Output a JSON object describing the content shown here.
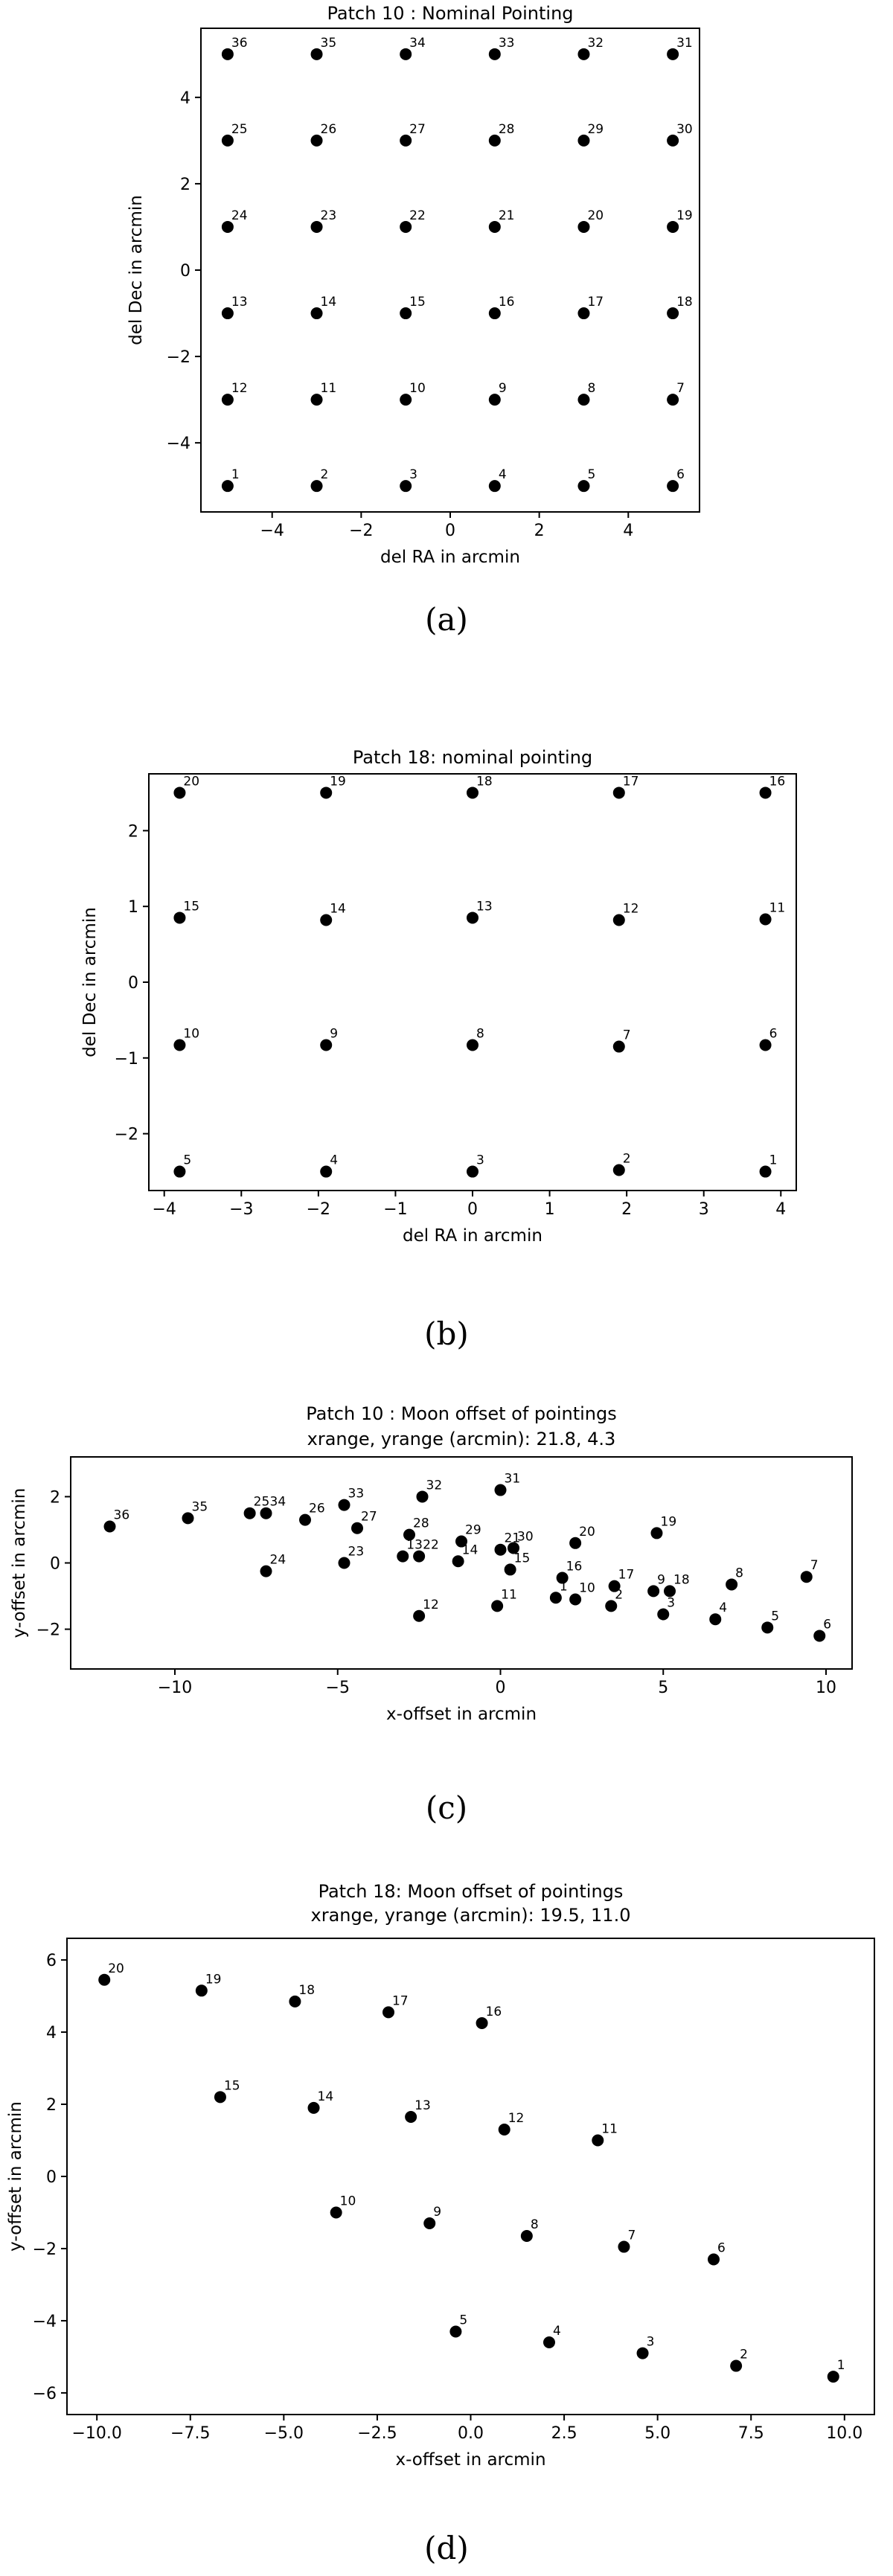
{
  "captions": [
    "(a)",
    "(b)",
    "(c)",
    "(d)"
  ],
  "chart_data": [
    {
      "type": "scatter",
      "title": "Patch 10 : Nominal Pointing",
      "subtitle": "",
      "xlabel": "del RA in arcmin",
      "ylabel": "del Dec in arcmin",
      "xlim": [
        -5.6,
        5.6
      ],
      "ylim": [
        -5.6,
        5.6
      ],
      "xticks": [
        -4,
        -2,
        0,
        2,
        4
      ],
      "yticks": [
        -4,
        -2,
        0,
        2,
        4
      ],
      "tick_labels_x": [
        "−4",
        "−2",
        "0",
        "2",
        "4"
      ],
      "tick_labels_y": [
        "−4",
        "−2",
        "0",
        "2",
        "4"
      ],
      "grid": false,
      "points": [
        {
          "label": "1",
          "x": -5,
          "y": -5
        },
        {
          "label": "2",
          "x": -3,
          "y": -5
        },
        {
          "label": "3",
          "x": -1,
          "y": -5
        },
        {
          "label": "4",
          "x": 1,
          "y": -5
        },
        {
          "label": "5",
          "x": 3,
          "y": -5
        },
        {
          "label": "6",
          "x": 5,
          "y": -5
        },
        {
          "label": "7",
          "x": 5,
          "y": -3
        },
        {
          "label": "8",
          "x": 3,
          "y": -3
        },
        {
          "label": "9",
          "x": 1,
          "y": -3
        },
        {
          "label": "10",
          "x": -1,
          "y": -3
        },
        {
          "label": "11",
          "x": -3,
          "y": -3
        },
        {
          "label": "12",
          "x": -5,
          "y": -3
        },
        {
          "label": "13",
          "x": -5,
          "y": -1
        },
        {
          "label": "14",
          "x": -3,
          "y": -1
        },
        {
          "label": "15",
          "x": -1,
          "y": -1
        },
        {
          "label": "16",
          "x": 1,
          "y": -1
        },
        {
          "label": "17",
          "x": 3,
          "y": -1
        },
        {
          "label": "18",
          "x": 5,
          "y": -1
        },
        {
          "label": "19",
          "x": 5,
          "y": 1
        },
        {
          "label": "20",
          "x": 3,
          "y": 1
        },
        {
          "label": "21",
          "x": 1,
          "y": 1
        },
        {
          "label": "22",
          "x": -1,
          "y": 1
        },
        {
          "label": "23",
          "x": -3,
          "y": 1
        },
        {
          "label": "24",
          "x": -5,
          "y": 1
        },
        {
          "label": "25",
          "x": -5,
          "y": 3
        },
        {
          "label": "26",
          "x": -3,
          "y": 3
        },
        {
          "label": "27",
          "x": -1,
          "y": 3
        },
        {
          "label": "28",
          "x": 1,
          "y": 3
        },
        {
          "label": "29",
          "x": 3,
          "y": 3
        },
        {
          "label": "30",
          "x": 5,
          "y": 3
        },
        {
          "label": "31",
          "x": 5,
          "y": 5
        },
        {
          "label": "32",
          "x": 3,
          "y": 5
        },
        {
          "label": "33",
          "x": 1,
          "y": 5
        },
        {
          "label": "34",
          "x": -1,
          "y": 5
        },
        {
          "label": "35",
          "x": -3,
          "y": 5
        },
        {
          "label": "36",
          "x": -5,
          "y": 5
        }
      ]
    },
    {
      "type": "scatter",
      "title": "Patch 18: nominal pointing",
      "subtitle": "",
      "xlabel": "del RA in arcmin",
      "ylabel": "del Dec in arcmin",
      "xlim": [
        -4.2,
        4.2
      ],
      "ylim": [
        -2.75,
        2.75
      ],
      "xticks": [
        -4,
        -3,
        -2,
        -1,
        0,
        1,
        2,
        3,
        4
      ],
      "yticks": [
        -2,
        -1,
        0,
        1,
        2
      ],
      "tick_labels_x": [
        "−4",
        "−3",
        "−2",
        "−1",
        "0",
        "1",
        "2",
        "3",
        "4"
      ],
      "tick_labels_y": [
        "−2",
        "−1",
        "0",
        "1",
        "2"
      ],
      "grid": false,
      "points": [
        {
          "label": "1",
          "x": 3.8,
          "y": -2.5
        },
        {
          "label": "2",
          "x": 1.9,
          "y": -2.48
        },
        {
          "label": "3",
          "x": 0,
          "y": -2.5
        },
        {
          "label": "4",
          "x": -1.9,
          "y": -2.5
        },
        {
          "label": "5",
          "x": -3.8,
          "y": -2.5
        },
        {
          "label": "6",
          "x": 3.8,
          "y": -0.83
        },
        {
          "label": "7",
          "x": 1.9,
          "y": -0.85
        },
        {
          "label": "8",
          "x": 0,
          "y": -0.83
        },
        {
          "label": "9",
          "x": -1.9,
          "y": -0.83
        },
        {
          "label": "10",
          "x": -3.8,
          "y": -0.83
        },
        {
          "label": "11",
          "x": 3.8,
          "y": 0.83
        },
        {
          "label": "12",
          "x": 1.9,
          "y": 0.82
        },
        {
          "label": "13",
          "x": 0,
          "y": 0.85
        },
        {
          "label": "14",
          "x": -1.9,
          "y": 0.82
        },
        {
          "label": "15",
          "x": -3.8,
          "y": 0.85
        },
        {
          "label": "16",
          "x": 3.8,
          "y": 2.5
        },
        {
          "label": "17",
          "x": 1.9,
          "y": 2.5
        },
        {
          "label": "18",
          "x": 0,
          "y": 2.5
        },
        {
          "label": "19",
          "x": -1.9,
          "y": 2.5
        },
        {
          "label": "20",
          "x": -3.8,
          "y": 2.5
        }
      ]
    },
    {
      "type": "scatter",
      "title": "Patch 10 : Moon offset of pointings",
      "subtitle": "xrange, yrange (arcmin): 21.8, 4.3",
      "xlabel": "x-offset in arcmin",
      "ylabel": "y-offset in arcmin",
      "xlim": [
        -13.2,
        10.8
      ],
      "ylim": [
        -3.2,
        3.2
      ],
      "xticks": [
        -10,
        -5,
        0,
        5,
        10
      ],
      "yticks": [
        -2,
        0,
        2
      ],
      "tick_labels_x": [
        "−10",
        "−5",
        "0",
        "5",
        "10"
      ],
      "tick_labels_y": [
        "−2",
        "0",
        "2"
      ],
      "grid": false,
      "points": [
        {
          "label": "1",
          "x": 1.7,
          "y": -1.05
        },
        {
          "label": "2",
          "x": 3.4,
          "y": -1.3
        },
        {
          "label": "3",
          "x": 5.0,
          "y": -1.55
        },
        {
          "label": "4",
          "x": 6.6,
          "y": -1.7
        },
        {
          "label": "5",
          "x": 8.2,
          "y": -1.95
        },
        {
          "label": "6",
          "x": 9.8,
          "y": -2.2
        },
        {
          "label": "7",
          "x": 9.4,
          "y": -0.42
        },
        {
          "label": "8",
          "x": 7.1,
          "y": -0.65
        },
        {
          "label": "9",
          "x": 4.7,
          "y": -0.85
        },
        {
          "label": "10",
          "x": 2.3,
          "y": -1.1
        },
        {
          "label": "11",
          "x": -0.1,
          "y": -1.3
        },
        {
          "label": "12",
          "x": -2.5,
          "y": -1.6
        },
        {
          "label": "13",
          "x": -3.0,
          "y": 0.2
        },
        {
          "label": "14",
          "x": -1.3,
          "y": 0.05
        },
        {
          "label": "15",
          "x": 0.3,
          "y": -0.2
        },
        {
          "label": "16",
          "x": 1.9,
          "y": -0.45
        },
        {
          "label": "17",
          "x": 3.5,
          "y": -0.7
        },
        {
          "label": "18",
          "x": 5.2,
          "y": -0.85
        },
        {
          "label": "19",
          "x": 4.8,
          "y": 0.9
        },
        {
          "label": "20",
          "x": 2.3,
          "y": 0.6
        },
        {
          "label": "21",
          "x": 0.0,
          "y": 0.4
        },
        {
          "label": "22",
          "x": -2.5,
          "y": 0.2
        },
        {
          "label": "23",
          "x": -4.8,
          "y": 0.0
        },
        {
          "label": "24",
          "x": -7.2,
          "y": -0.25
        },
        {
          "label": "25",
          "x": -7.7,
          "y": 1.5
        },
        {
          "label": "26",
          "x": -6.0,
          "y": 1.3
        },
        {
          "label": "27",
          "x": -4.4,
          "y": 1.05
        },
        {
          "label": "28",
          "x": -2.8,
          "y": 0.85
        },
        {
          "label": "29",
          "x": -1.2,
          "y": 0.65
        },
        {
          "label": "30",
          "x": 0.4,
          "y": 0.45
        },
        {
          "label": "31",
          "x": 0.0,
          "y": 2.2
        },
        {
          "label": "32",
          "x": -2.4,
          "y": 2.0
        },
        {
          "label": "33",
          "x": -4.8,
          "y": 1.75
        },
        {
          "label": "34",
          "x": -7.2,
          "y": 1.5
        },
        {
          "label": "35",
          "x": -9.6,
          "y": 1.35
        },
        {
          "label": "36",
          "x": -12.0,
          "y": 1.1
        }
      ]
    },
    {
      "type": "scatter",
      "title": "Patch 18: Moon offset of pointings",
      "subtitle": "xrange, yrange (arcmin): 19.5, 11.0",
      "xlabel": "x-offset in arcmin",
      "ylabel": "y-offset in arcmin",
      "xlim": [
        -10.8,
        10.8
      ],
      "ylim": [
        -6.6,
        6.6
      ],
      "xticks": [
        -10.0,
        -7.5,
        -5.0,
        -2.5,
        0.0,
        2.5,
        5.0,
        7.5,
        10.0
      ],
      "yticks": [
        -6,
        -4,
        -2,
        0,
        2,
        4,
        6
      ],
      "tick_labels_x": [
        "−10.0",
        "−7.5",
        "−5.0",
        "−2.5",
        "0.0",
        "2.5",
        "5.0",
        "7.5",
        "10.0"
      ],
      "tick_labels_y": [
        "−6",
        "−4",
        "−2",
        "0",
        "2",
        "4",
        "6"
      ],
      "grid": false,
      "points": [
        {
          "label": "1",
          "x": 9.7,
          "y": -5.55
        },
        {
          "label": "2",
          "x": 7.1,
          "y": -5.25
        },
        {
          "label": "3",
          "x": 4.6,
          "y": -4.9
        },
        {
          "label": "4",
          "x": 2.1,
          "y": -4.6
        },
        {
          "label": "5",
          "x": -0.4,
          "y": -4.3
        },
        {
          "label": "6",
          "x": 6.5,
          "y": -2.3
        },
        {
          "label": "7",
          "x": 4.1,
          "y": -1.95
        },
        {
          "label": "8",
          "x": 1.5,
          "y": -1.65
        },
        {
          "label": "9",
          "x": -1.1,
          "y": -1.3
        },
        {
          "label": "10",
          "x": -3.6,
          "y": -1.0
        },
        {
          "label": "11",
          "x": 3.4,
          "y": 1.0
        },
        {
          "label": "12",
          "x": 0.9,
          "y": 1.3
        },
        {
          "label": "13",
          "x": -1.6,
          "y": 1.65
        },
        {
          "label": "14",
          "x": -4.2,
          "y": 1.9
        },
        {
          "label": "15",
          "x": -6.7,
          "y": 2.2
        },
        {
          "label": "16",
          "x": 0.3,
          "y": 4.25
        },
        {
          "label": "17",
          "x": -2.2,
          "y": 4.55
        },
        {
          "label": "18",
          "x": -4.7,
          "y": 4.85
        },
        {
          "label": "19",
          "x": -7.2,
          "y": 5.15
        },
        {
          "label": "20",
          "x": -9.8,
          "y": 5.45
        }
      ]
    }
  ]
}
